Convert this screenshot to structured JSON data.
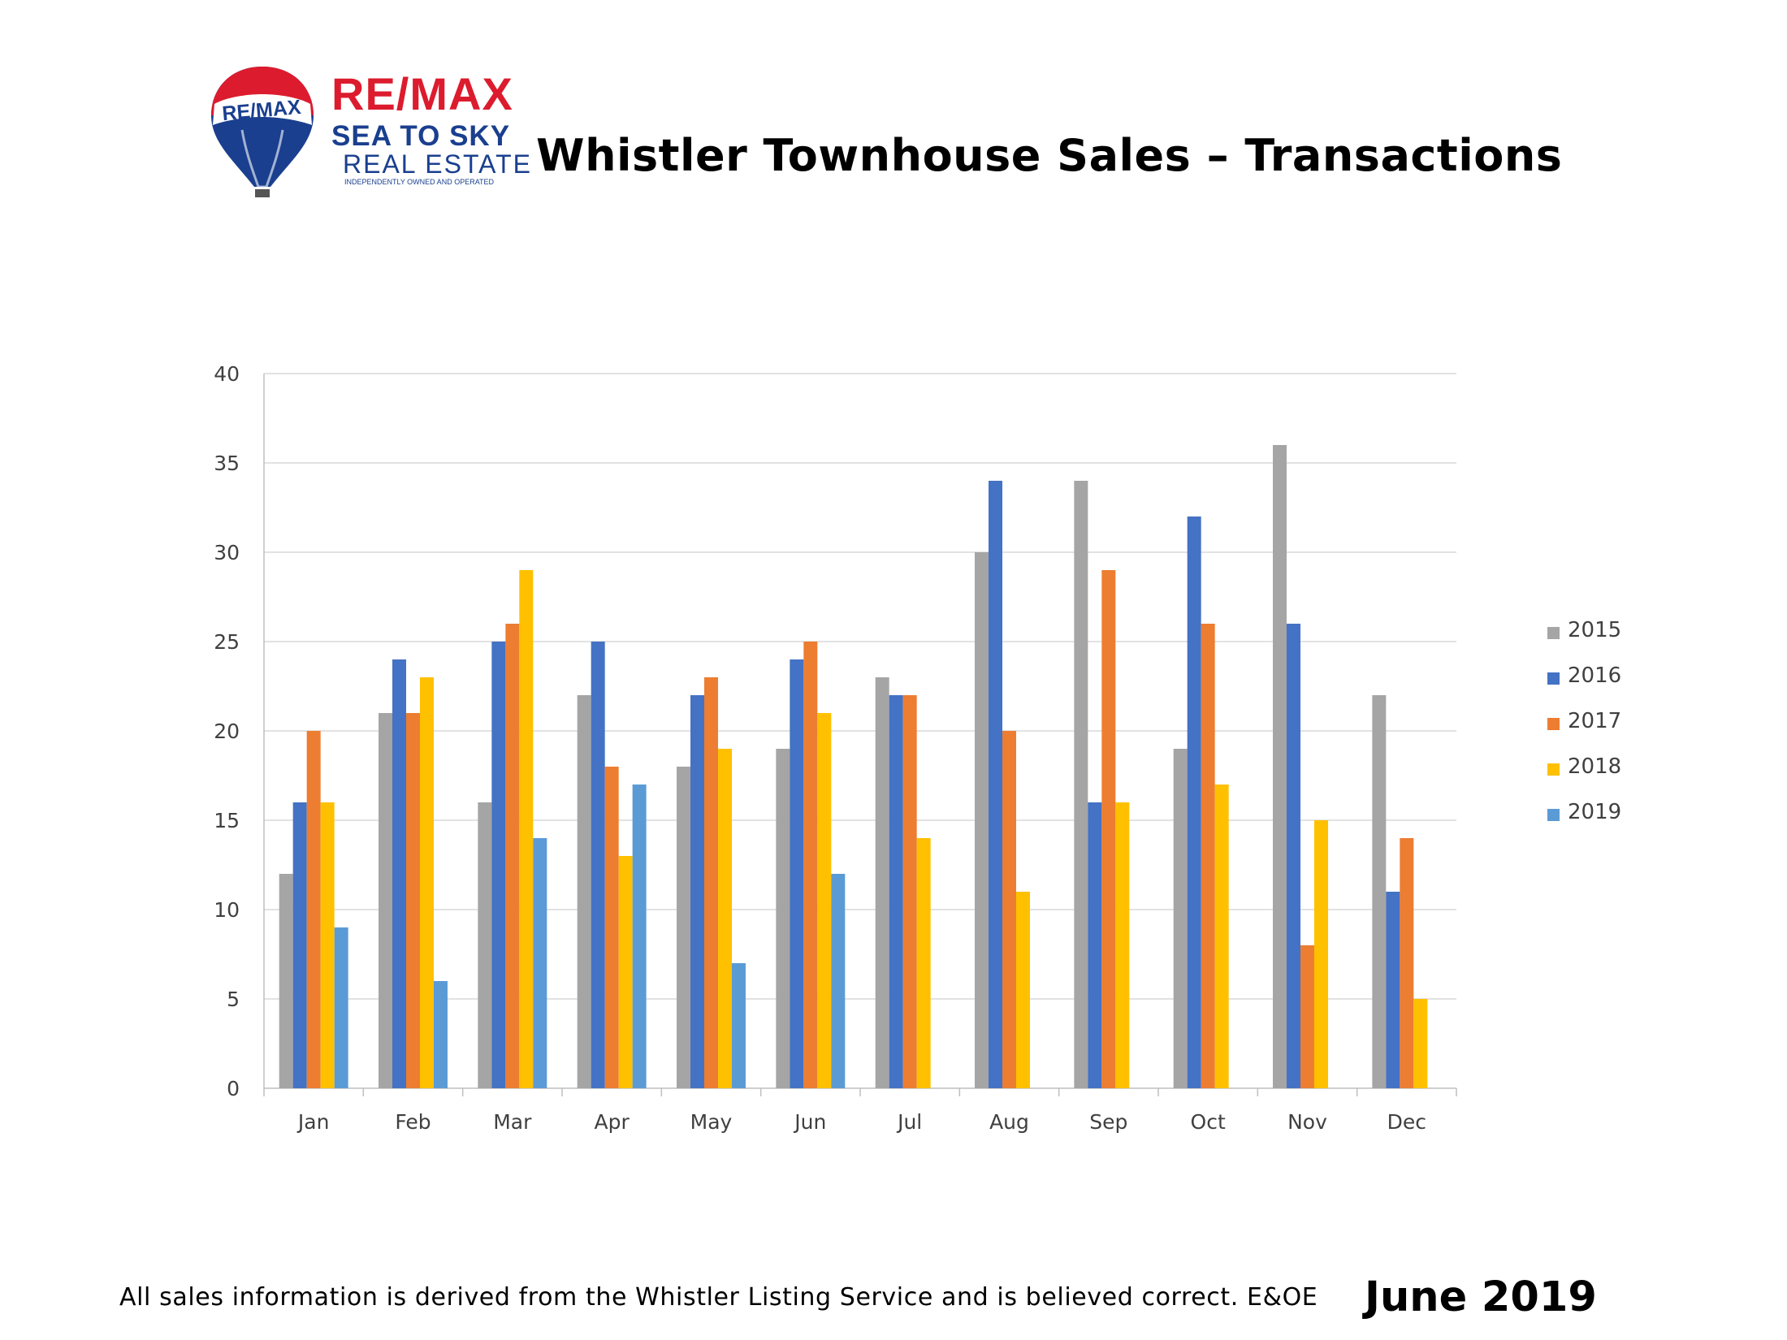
{
  "logo": {
    "balloon_text": "RE/MAX",
    "brand": "RE/MAX",
    "line1": "SEA TO SKY",
    "line2": "REAL ESTATE",
    "line3": "INDEPENDENTLY OWNED AND OPERATED"
  },
  "title": "Whistler Townhouse Sales – Transactions",
  "footer": "All sales information is derived from the Whistler Listing Service and is believed correct. E&OE",
  "date": "June 2019",
  "colors": {
    "2015": "#a5a5a5",
    "2016": "#4472c4",
    "2017": "#ed7d31",
    "2018": "#ffc000",
    "2019": "#5b9bd5",
    "remax_red": "#dc1c2e",
    "remax_blue": "#1a3f8f"
  },
  "chart_data": {
    "type": "bar",
    "categories": [
      "Jan",
      "Feb",
      "Mar",
      "Apr",
      "May",
      "Jun",
      "Jul",
      "Aug",
      "Sep",
      "Oct",
      "Nov",
      "Dec"
    ],
    "series": [
      {
        "name": "2015",
        "values": [
          12,
          21,
          16,
          22,
          18,
          19,
          23,
          30,
          34,
          19,
          36,
          22
        ]
      },
      {
        "name": "2016",
        "values": [
          16,
          24,
          25,
          25,
          22,
          24,
          22,
          34,
          16,
          32,
          26,
          11
        ]
      },
      {
        "name": "2017",
        "values": [
          20,
          21,
          26,
          18,
          23,
          25,
          22,
          20,
          29,
          26,
          8,
          14
        ]
      },
      {
        "name": "2018",
        "values": [
          16,
          23,
          29,
          13,
          19,
          21,
          14,
          11,
          16,
          17,
          15,
          5
        ]
      },
      {
        "name": "2019",
        "values": [
          9,
          6,
          14,
          17,
          7,
          12,
          null,
          null,
          null,
          null,
          null,
          null
        ]
      }
    ],
    "ylim": [
      0,
      40
    ],
    "yticks": [
      0,
      5,
      10,
      15,
      20,
      25,
      30,
      35,
      40
    ],
    "grid": true,
    "legend": "right"
  }
}
